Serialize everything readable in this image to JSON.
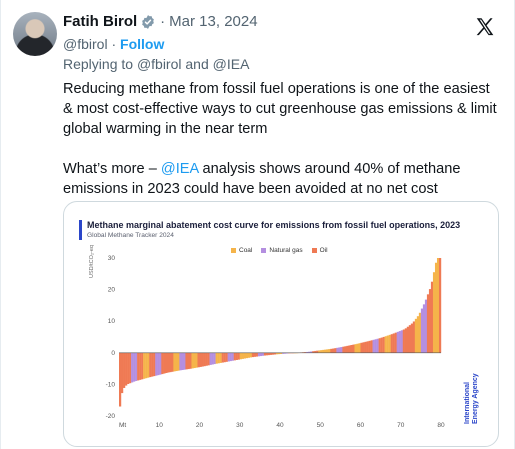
{
  "author": {
    "name": "Fatih Birol",
    "date": "Mar 13, 2024",
    "handle": "@fbirol",
    "follow_label": "Follow",
    "date_separator": "·",
    "handle_separator": "·"
  },
  "reply": {
    "prefix": "Replying to",
    "user1": "@fbirol",
    "and": "and",
    "user2": "@IEA"
  },
  "tweet": {
    "paragraph1": "Reducing methane from fossil fuel operations is one of the easiest & most cost-effective ways to cut greenhouse gas emissions & limit global warming in the near term",
    "paragraph2_before": "What’s more – ",
    "paragraph2_mention": "@IEA",
    "paragraph2_after": " analysis shows around 40% of methane emissions in 2023 could have been avoided at no net cost"
  },
  "icons": {
    "verified": "verified-badge-icon",
    "platform": "x-logo-icon"
  },
  "colors": {
    "coal": "#f5b44a",
    "gas": "#b48fe0",
    "oil": "#ef7a54",
    "accent": "#1d9bf0",
    "iea_blue": "#2b46c9"
  },
  "chart_data": {
    "type": "bar",
    "title": "Methane marginal abatement cost curve for emissions from fossil fuel operations, 2023",
    "subtitle": "Global Methane Tracker 2024",
    "legend": [
      "Coal",
      "Natural gas",
      "Oil"
    ],
    "ylabel": "USD/tCO₂-eq",
    "xlabel": "Mt",
    "ylim": [
      -20,
      30
    ],
    "xlim": [
      0,
      80
    ],
    "yticks": [
      "30",
      "20",
      "10",
      "0",
      "-10",
      "-20"
    ],
    "xticks": [
      "Mt",
      "10",
      "20",
      "30",
      "40",
      "50",
      "60",
      "70",
      "80"
    ],
    "grid": false,
    "curve": [
      [
        0,
        -20
      ],
      [
        0.5,
        -14
      ],
      [
        1,
        -11.5
      ],
      [
        2,
        -10
      ],
      [
        4,
        -9
      ],
      [
        6,
        -8.3
      ],
      [
        8,
        -7.6
      ],
      [
        10,
        -7
      ],
      [
        12,
        -6.3
      ],
      [
        15,
        -5.6
      ],
      [
        18,
        -5
      ],
      [
        21,
        -4.3
      ],
      [
        24,
        -3.5
      ],
      [
        27,
        -2.8
      ],
      [
        30,
        -2.1
      ],
      [
        33,
        -1.4
      ],
      [
        36,
        -0.9
      ],
      [
        39,
        -0.5
      ],
      [
        42,
        -0.2
      ],
      [
        44,
        0
      ],
      [
        47,
        0.3
      ],
      [
        50,
        0.8
      ],
      [
        53,
        1.3
      ],
      [
        56,
        2
      ],
      [
        59,
        2.8
      ],
      [
        62,
        3.7
      ],
      [
        65,
        4.7
      ],
      [
        68,
        6
      ],
      [
        71,
        7.5
      ],
      [
        73,
        9.5
      ],
      [
        74.5,
        12
      ],
      [
        76,
        16
      ],
      [
        77.5,
        21
      ],
      [
        79,
        30
      ],
      [
        80,
        30
      ]
    ],
    "source": "International Energy Agency"
  }
}
